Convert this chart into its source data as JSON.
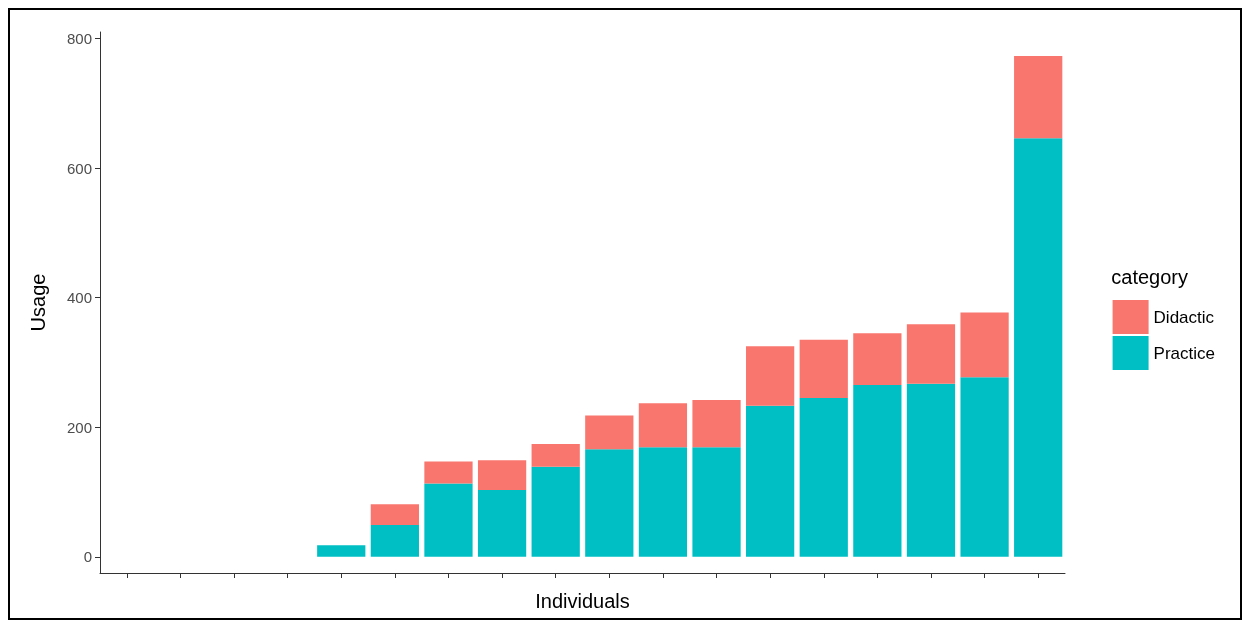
{
  "chart_data": {
    "type": "bar",
    "stacked": true,
    "xlabel": "Individuals",
    "ylabel": "Usage",
    "legend_title": "category",
    "legend": "right",
    "categories": [
      null,
      null,
      null,
      null,
      null,
      null,
      null,
      null,
      null,
      null,
      null,
      null,
      null,
      null,
      null,
      null,
      null,
      null
    ],
    "series": [
      {
        "name": "Practice",
        "color": "#00bfc4",
        "values": [
          0,
          0,
          0,
          0,
          18,
          49,
          113,
          103,
          139,
          166,
          169,
          169,
          233,
          245,
          265,
          267,
          277,
          646
        ]
      },
      {
        "name": "Didactic",
        "color": "#f8766d",
        "values": [
          0,
          0,
          0,
          0,
          0,
          32,
          34,
          46,
          35,
          52,
          68,
          73,
          92,
          90,
          80,
          92,
          100,
          127
        ]
      }
    ],
    "ylim": [
      -25,
      810
    ],
    "yticks": [
      0,
      200,
      400,
      600,
      800
    ],
    "tick_labels": "y"
  }
}
